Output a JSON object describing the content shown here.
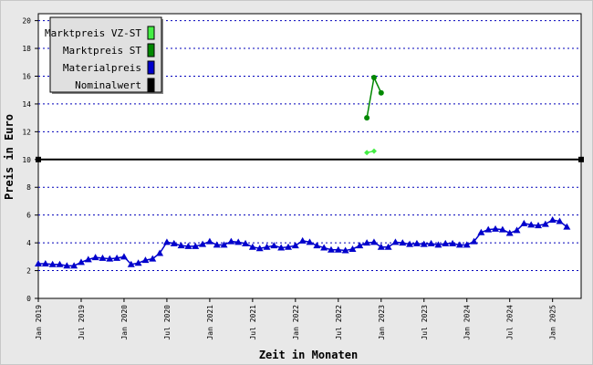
{
  "chart_data": {
    "type": "line",
    "xlabel": "Zeit in Monaten",
    "ylabel": "Preis in Euro",
    "ylim": [
      0,
      20.5
    ],
    "yticks": [
      0,
      2,
      4,
      6,
      8,
      10,
      12,
      14,
      16,
      18,
      20
    ],
    "grid": true,
    "legend_position": "top-left",
    "x_tick_labels": [
      "Jan 2019",
      "Jul 2019",
      "Jan 2020",
      "Jul 2020",
      "Jan 2021",
      "Jul 2021",
      "Jan 2022",
      "Jul 2022",
      "Jan 2023",
      "Jul 2023",
      "Jan 2024",
      "Jul 2024",
      "Jan 2025"
    ],
    "x_tick_months": [
      0,
      6,
      12,
      18,
      24,
      30,
      36,
      42,
      48,
      54,
      60,
      66,
      72
    ],
    "x_range_months": [
      0,
      76
    ],
    "series": [
      {
        "name": "Marktpreis VZ-ST",
        "color": "#44ee44",
        "marker": "diamond",
        "points": [
          [
            46,
            10.5
          ],
          [
            47,
            10.6
          ]
        ]
      },
      {
        "name": "Marktpreis ST",
        "color": "#008800",
        "marker": "circle",
        "points": [
          [
            46,
            13.0
          ],
          [
            47,
            15.9
          ],
          [
            48,
            14.8
          ]
        ]
      },
      {
        "name": "Materialpreis",
        "color": "#0000cc",
        "marker": "triangle",
        "points": [
          [
            0,
            2.5
          ],
          [
            1,
            2.5
          ],
          [
            2,
            2.45
          ],
          [
            3,
            2.45
          ],
          [
            4,
            2.35
          ],
          [
            5,
            2.35
          ],
          [
            6,
            2.6
          ],
          [
            7,
            2.8
          ],
          [
            8,
            2.95
          ],
          [
            9,
            2.9
          ],
          [
            10,
            2.85
          ],
          [
            11,
            2.9
          ],
          [
            12,
            3.0
          ],
          [
            13,
            2.45
          ],
          [
            14,
            2.55
          ],
          [
            15,
            2.75
          ],
          [
            16,
            2.85
          ],
          [
            17,
            3.25
          ],
          [
            18,
            4.05
          ],
          [
            19,
            3.95
          ],
          [
            20,
            3.8
          ],
          [
            21,
            3.75
          ],
          [
            22,
            3.75
          ],
          [
            23,
            3.9
          ],
          [
            24,
            4.1
          ],
          [
            25,
            3.85
          ],
          [
            26,
            3.85
          ],
          [
            27,
            4.1
          ],
          [
            28,
            4.05
          ],
          [
            29,
            3.95
          ],
          [
            30,
            3.7
          ],
          [
            31,
            3.6
          ],
          [
            32,
            3.7
          ],
          [
            33,
            3.8
          ],
          [
            34,
            3.65
          ],
          [
            35,
            3.7
          ],
          [
            36,
            3.8
          ],
          [
            37,
            4.15
          ],
          [
            38,
            4.05
          ],
          [
            39,
            3.8
          ],
          [
            40,
            3.65
          ],
          [
            41,
            3.5
          ],
          [
            42,
            3.5
          ],
          [
            43,
            3.45
          ],
          [
            44,
            3.55
          ],
          [
            45,
            3.8
          ],
          [
            46,
            4.0
          ],
          [
            47,
            4.05
          ],
          [
            48,
            3.7
          ],
          [
            49,
            3.7
          ],
          [
            50,
            4.05
          ],
          [
            51,
            4.0
          ],
          [
            52,
            3.9
          ],
          [
            53,
            3.95
          ],
          [
            54,
            3.9
          ],
          [
            55,
            3.95
          ],
          [
            56,
            3.85
          ],
          [
            57,
            3.95
          ],
          [
            58,
            3.95
          ],
          [
            59,
            3.85
          ],
          [
            60,
            3.85
          ],
          [
            61,
            4.1
          ],
          [
            62,
            4.75
          ],
          [
            63,
            4.95
          ],
          [
            64,
            5.0
          ],
          [
            65,
            4.95
          ],
          [
            66,
            4.7
          ],
          [
            67,
            4.9
          ],
          [
            68,
            5.4
          ],
          [
            69,
            5.3
          ],
          [
            70,
            5.25
          ],
          [
            71,
            5.35
          ],
          [
            72,
            5.65
          ],
          [
            73,
            5.55
          ],
          [
            74,
            5.15
          ]
        ]
      },
      {
        "name": "Nominalwert",
        "color": "#000000",
        "marker": "square",
        "points": [
          [
            0,
            10
          ],
          [
            76,
            10
          ]
        ]
      }
    ]
  }
}
